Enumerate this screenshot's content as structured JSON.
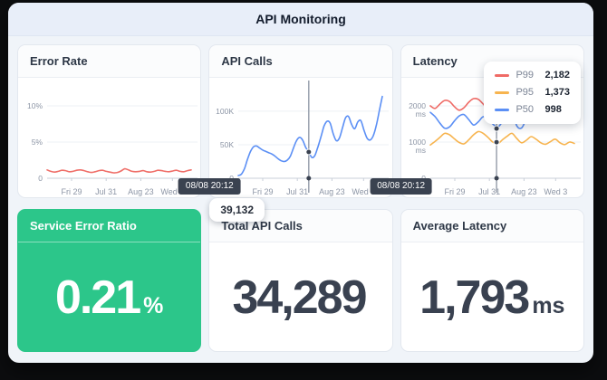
{
  "window": {
    "title": "API Monitoring"
  },
  "colors": {
    "error_line": "#ef6e68",
    "p99": "#ef6b66",
    "p95": "#f7b44f",
    "p50": "#5b8ff5",
    "crosshair_dot": "#3a4250",
    "accent_green": "#2cc68a"
  },
  "charts": {
    "error_rate": {
      "type": "line",
      "title": "Error Rate",
      "ylim": [
        0,
        12.5
      ],
      "y_ticks": [
        {
          "v": 0,
          "label": [
            "0"
          ]
        },
        {
          "v": 5,
          "label": [
            "5%"
          ]
        },
        {
          "v": 10,
          "label": [
            "10%"
          ]
        }
      ],
      "x_ticks": [
        {
          "f": 0.17,
          "label": "Fri 29"
        },
        {
          "f": 0.41,
          "label": "Jul 31"
        },
        {
          "f": 0.65,
          "label": "Aug 23"
        },
        {
          "f": 0.87,
          "label": "Wed 3"
        }
      ],
      "series": [
        {
          "name": "error-rate",
          "color": "#ef6e68",
          "values": [
            1.15,
            0.95,
            0.85,
            0.95,
            1.1,
            1.05,
            0.9,
            0.95,
            1.1,
            1.15,
            1.05,
            0.9,
            0.8,
            0.9,
            1.05,
            1.1,
            0.95,
            0.85,
            0.75,
            0.8,
            1.0,
            1.3,
            1.15,
            0.95,
            0.9,
            0.95,
            1.05,
            0.9,
            0.85,
            0.95,
            1.1,
            1.05,
            0.95,
            0.9,
            1.0,
            1.1,
            0.95,
            0.9,
            1.05,
            1.15
          ]
        }
      ]
    },
    "api_calls": {
      "type": "line",
      "title": "API Calls",
      "ylim": [
        0,
        135
      ],
      "y_ticks": [
        {
          "v": 0,
          "label": [
            "0"
          ]
        },
        {
          "v": 50,
          "label": [
            "50K"
          ]
        },
        {
          "v": 100,
          "label": [
            "100K"
          ]
        }
      ],
      "x_ticks": [
        {
          "f": 0.17,
          "label": "Fri 29"
        },
        {
          "f": 0.41,
          "label": "Jul 31"
        },
        {
          "f": 0.65,
          "label": "Aug 23"
        },
        {
          "f": 0.87,
          "label": "Wed 3"
        }
      ],
      "series": [
        {
          "name": "api-calls",
          "color": "#5b8ff5",
          "values": [
            4,
            6,
            14,
            28,
            40,
            47,
            48,
            45,
            42,
            40,
            38,
            36,
            33,
            29,
            26,
            25,
            27,
            33,
            45,
            56,
            61,
            57,
            46,
            39,
            31,
            34,
            47,
            62,
            78,
            85,
            82,
            66,
            56,
            60,
            75,
            90,
            92,
            80,
            74,
            84,
            86,
            72,
            60,
            57,
            63,
            78,
            100,
            122
          ]
        }
      ],
      "crosshair": {
        "f": 0.489,
        "time_label": "08/08 20:12",
        "value_label": "39,132",
        "points": [
          {
            "v": 39.132
          }
        ]
      }
    },
    "latency": {
      "type": "line",
      "title": "Latency",
      "ylim": [
        0,
        2500
      ],
      "y_ticks": [
        {
          "v": 0,
          "label": [
            "0"
          ]
        },
        {
          "v": 1000,
          "label": [
            "1000",
            "ms"
          ]
        },
        {
          "v": 2000,
          "label": [
            "2000",
            "ms"
          ]
        }
      ],
      "x_ticks": [
        {
          "f": 0.17,
          "label": "Fri 29"
        },
        {
          "f": 0.41,
          "label": "Jul 31"
        },
        {
          "f": 0.65,
          "label": "Aug 23"
        },
        {
          "f": 0.87,
          "label": "Wed 3"
        }
      ],
      "series": [
        {
          "name": "p99",
          "color": "#ef6b66",
          "values": [
            2000,
            1930,
            2050,
            2150,
            2120,
            1980,
            1880,
            1950,
            2100,
            2200,
            2180,
            2050,
            1900,
            1800,
            1820,
            1960,
            2120,
            2182,
            2050,
            1850,
            1720,
            1780,
            1880,
            1720,
            1760,
            1900,
            1840,
            1960,
            1900,
            2050,
            2240
          ]
        },
        {
          "name": "p50",
          "color": "#5b8ff5",
          "values": [
            1820,
            1700,
            1520,
            1380,
            1420,
            1580,
            1720,
            1760,
            1620,
            1470,
            1560,
            1700,
            1640,
            1500,
            1410,
            1560,
            1760,
            1870,
            1450,
            1390,
            1620,
            1710,
            1560,
            1740,
            1690,
            1590,
            1660,
            1560,
            1620,
            1750,
            1900
          ]
        },
        {
          "name": "p95",
          "color": "#f7b44f",
          "values": [
            920,
            1020,
            1130,
            1240,
            1200,
            1090,
            990,
            950,
            1060,
            1200,
            1290,
            1240,
            1130,
            1000,
            950,
            1060,
            1160,
            1240,
            1100,
            980,
            1050,
            1150,
            1080,
            980,
            940,
            1010,
            1080,
            980,
            930,
            1000,
            960
          ]
        }
      ],
      "legend": [
        {
          "label": "P99",
          "value": "2,182",
          "color": "#ef6b66"
        },
        {
          "label": "P95",
          "value": "1,373",
          "color": "#f7b44f"
        },
        {
          "label": "P50",
          "value": "998",
          "color": "#5b8ff5"
        }
      ],
      "crosshair": {
        "f": 0.46,
        "time_label": "08/08 20:12",
        "points": [
          {
            "v": 2182
          },
          {
            "v": 1373
          },
          {
            "v": 998
          }
        ]
      }
    }
  },
  "stats": {
    "service_error_ratio": {
      "title": "Service Error Ratio",
      "value": "0.21",
      "suffix": "%"
    },
    "total_api_calls": {
      "title": "Total API Calls",
      "value": "34,289",
      "suffix": ""
    },
    "average_latency": {
      "title": "Average Latency",
      "value": "1,793",
      "suffix": "ms"
    }
  }
}
